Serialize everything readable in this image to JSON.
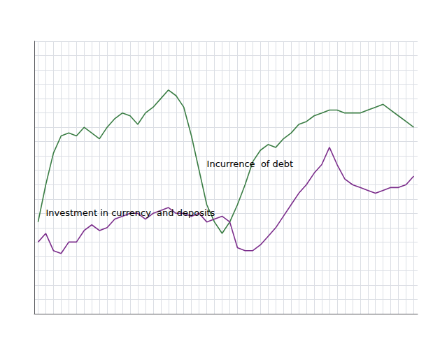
{
  "chart_data": {
    "type": "line",
    "x": [
      0,
      1,
      2,
      3,
      4,
      5,
      6,
      7,
      8,
      9,
      10,
      11,
      12,
      13,
      14,
      15,
      16,
      17,
      18,
      19,
      20,
      21,
      22,
      23,
      24,
      25,
      26,
      27,
      28,
      29,
      30,
      31,
      32,
      33,
      34,
      35,
      36,
      37,
      38,
      39,
      40,
      41,
      42,
      43,
      44,
      45,
      46,
      47,
      48,
      49
    ],
    "series": [
      {
        "name": "Incurrence  of debt",
        "color": "#3a7d44",
        "values": [
          3.2,
          4.5,
          5.6,
          6.2,
          6.3,
          6.2,
          6.5,
          6.3,
          6.1,
          6.5,
          6.8,
          7.0,
          6.9,
          6.6,
          7.0,
          7.2,
          7.5,
          7.8,
          7.6,
          7.2,
          6.2,
          5.0,
          3.8,
          3.2,
          2.8,
          3.2,
          3.8,
          4.5,
          5.3,
          5.7,
          5.9,
          5.8,
          6.1,
          6.3,
          6.6,
          6.7,
          6.9,
          7.0,
          7.1,
          7.1,
          7.0,
          7.0,
          7.0,
          7.1,
          7.2,
          7.3,
          7.1,
          6.9,
          6.7,
          6.5
        ]
      },
      {
        "name": "Investment in currency  and deposits",
        "color": "#7b2d8b",
        "values": [
          2.5,
          2.8,
          2.2,
          2.1,
          2.5,
          2.5,
          2.9,
          3.1,
          2.9,
          3.0,
          3.3,
          3.4,
          3.5,
          3.5,
          3.3,
          3.5,
          3.6,
          3.7,
          3.5,
          3.5,
          3.4,
          3.5,
          3.2,
          3.3,
          3.4,
          3.2,
          2.3,
          2.2,
          2.2,
          2.4,
          2.7,
          3.0,
          3.4,
          3.8,
          4.2,
          4.5,
          4.9,
          5.2,
          5.8,
          5.2,
          4.7,
          4.5,
          4.4,
          4.3,
          4.2,
          4.3,
          4.4,
          4.4,
          4.5,
          4.8
        ]
      }
    ],
    "xlim": [
      -0.5,
      49.5
    ],
    "ylim": [
      0.0,
      9.5
    ],
    "xticks": [
      0,
      1,
      2,
      3,
      4,
      5,
      6,
      7,
      8,
      9,
      10,
      11,
      12,
      13,
      14,
      15,
      16,
      17,
      18,
      19,
      20,
      21,
      22,
      23,
      24,
      25,
      26,
      27,
      28,
      29,
      30,
      31,
      32,
      33,
      34,
      35,
      36,
      37,
      38,
      39,
      40,
      41,
      42,
      43,
      44,
      45,
      46,
      47,
      48,
      49
    ],
    "yticks": [
      0,
      0.5,
      1,
      1.5,
      2,
      2.5,
      3,
      3.5,
      4,
      4.5,
      5,
      5.5,
      6,
      6.5,
      7,
      7.5,
      8,
      8.5,
      9,
      9.5
    ],
    "grid": true,
    "tick_labels": false
  }
}
